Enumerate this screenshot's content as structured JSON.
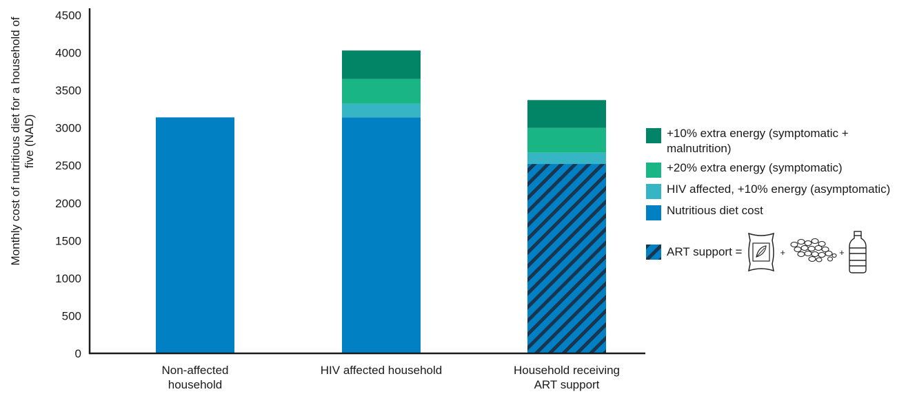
{
  "chart_data": {
    "type": "bar",
    "stacked": true,
    "ylabel": "Monthly cost of nutritious diet for a household of five (NAD)",
    "ylim": [
      0,
      4500
    ],
    "yticks": [
      0,
      500,
      1000,
      1500,
      2000,
      2500,
      3000,
      3500,
      4000,
      4500
    ],
    "categories": [
      "Non-affected household",
      "HIV affected household",
      "Household receiving ART support"
    ],
    "series": [
      {
        "name": "Nutritious diet cost",
        "color": "#0180c4",
        "values": [
          3140,
          3140,
          2520
        ]
      },
      {
        "name": "HIV affected, +10% energy (asymptomatic)",
        "color": "#36b6c5",
        "values": [
          0,
          180,
          150
        ]
      },
      {
        "name": "+20% extra energy (symptomatic)",
        "color": "#1ab584",
        "values": [
          0,
          330,
          330
        ]
      },
      {
        "name": "+10% extra energy (symptomatic + malnutrition)",
        "color": "#028567",
        "values": [
          0,
          380,
          370
        ]
      }
    ],
    "art_support": {
      "label": "ART support =",
      "applies_to_category": "Household receiving ART support",
      "applies_to_series": "Nutritious diet cost",
      "pattern_colors": [
        "#0180c4",
        "#1a3550"
      ],
      "icons": [
        "maize-meal-bag-icon",
        "beans-icon",
        "oil-bottle-icon"
      ],
      "plus": "+"
    },
    "legend": [
      {
        "label": "+10% extra energy (symptomatic + malnutrition)",
        "color": "#028567"
      },
      {
        "label": "+20% extra energy (symptomatic)",
        "color": "#1ab584"
      },
      {
        "label": "HIV affected, +10% energy (asymptomatic)",
        "color": "#36b6c5"
      },
      {
        "label": "Nutritious diet cost",
        "color": "#0180c4"
      }
    ],
    "legend_position": "right",
    "grid": false
  }
}
